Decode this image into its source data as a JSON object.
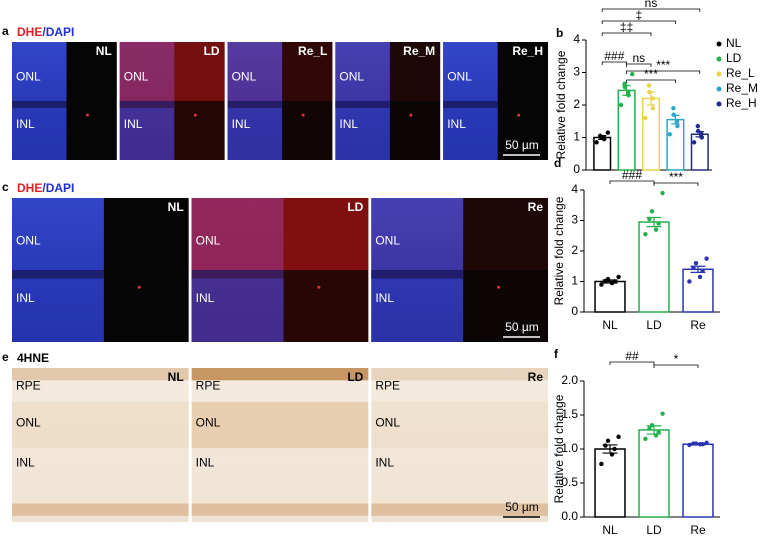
{
  "images": [
    {
      "letter": "a",
      "stain": [
        "DHE",
        "/",
        "DAPI"
      ],
      "panels": [
        {
          "label": "NL",
          "layers": [
            "ONL",
            "INL"
          ]
        },
        {
          "label": "LD",
          "layers": [
            "ONL",
            "INL"
          ]
        },
        {
          "label": "Re_L",
          "layers": [
            "ONL",
            "INL"
          ]
        },
        {
          "label": "Re_M",
          "layers": [
            "ONL",
            "INL"
          ]
        },
        {
          "label": "Re_H",
          "layers": [
            "ONL",
            "INL"
          ]
        }
      ],
      "scale_bar": "50 µm"
    },
    {
      "letter": "c",
      "stain": [
        "DHE",
        "/",
        "DAPI"
      ],
      "panels": [
        {
          "label": "NL",
          "layers": [
            "ONL",
            "INL"
          ]
        },
        {
          "label": "LD",
          "layers": [
            "ONL",
            "INL"
          ]
        },
        {
          "label": "Re",
          "layers": [
            "ONL",
            "INL"
          ]
        }
      ],
      "scale_bar": "50 µm"
    },
    {
      "letter": "e",
      "stain": [
        "4HNE"
      ],
      "panels": [
        {
          "label": "NL",
          "layers": [
            "RPE",
            "ONL",
            "INL"
          ]
        },
        {
          "label": "LD",
          "layers": [
            "RPE",
            "ONL",
            "INL"
          ]
        },
        {
          "label": "Re",
          "layers": [
            "RPE",
            "ONL",
            "INL"
          ]
        }
      ],
      "scale_bar": "50 µm"
    }
  ],
  "chart_data": [
    {
      "type": "bar",
      "letter": "b",
      "ylabel": "Relative fold change",
      "categories": [
        "NL",
        "LD",
        "Re_L",
        "Re_M",
        "Re_H"
      ],
      "values": [
        1.0,
        2.45,
        2.2,
        1.55,
        1.1
      ],
      "errors": [
        0.06,
        0.15,
        0.2,
        0.13,
        0.08
      ],
      "points": [
        [
          0.85,
          0.95,
          1.0,
          1.02,
          1.05,
          1.15
        ],
        [
          2.0,
          2.3,
          2.4,
          2.55,
          2.65,
          2.95
        ],
        [
          1.6,
          1.9,
          2.2,
          2.4,
          2.6
        ],
        [
          1.1,
          1.35,
          1.5,
          1.7,
          1.9
        ],
        [
          0.85,
          1.0,
          1.1,
          1.2,
          1.35
        ]
      ],
      "colors": [
        "#000000",
        "#22b14c",
        "#e8d44d",
        "#2aa6c8",
        "#1f2a8a"
      ],
      "ylim": [
        0,
        4
      ],
      "yticks": [
        0,
        1,
        2,
        3,
        4
      ],
      "legend": "right",
      "annotations": [
        {
          "text": "ns",
          "between": [
            "NL",
            "Re_H"
          ]
        },
        {
          "text": "‡",
          "between": [
            "NL",
            "Re_M"
          ]
        },
        {
          "text": "‡‡",
          "between": [
            "NL",
            "Re_L"
          ]
        },
        {
          "text": "###",
          "between": [
            "NL",
            "LD"
          ]
        },
        {
          "text": "ns",
          "between": [
            "LD",
            "Re_L"
          ]
        },
        {
          "text": "***",
          "between": [
            "LD",
            "Re_H"
          ]
        },
        {
          "text": "***",
          "between": [
            "LD",
            "Re_M"
          ]
        }
      ]
    },
    {
      "type": "bar",
      "letter": "d",
      "ylabel": "Relative fold change",
      "categories": [
        "NL",
        "LD",
        "Re"
      ],
      "values": [
        1.0,
        2.95,
        1.4
      ],
      "errors": [
        0.05,
        0.15,
        0.1
      ],
      "points": [
        [
          0.9,
          0.95,
          1.0,
          1.02,
          1.08,
          1.15
        ],
        [
          2.55,
          2.7,
          2.9,
          3.05,
          3.3,
          3.9
        ],
        [
          1.0,
          1.15,
          1.35,
          1.45,
          1.6,
          1.75
        ]
      ],
      "colors": [
        "#000000",
        "#22b14c",
        "#2a33b0"
      ],
      "ylim": [
        0,
        4
      ],
      "yticks": [
        0,
        1,
        2,
        3,
        4
      ],
      "annotations": [
        {
          "text": "###",
          "between": [
            "NL",
            "LD"
          ]
        },
        {
          "text": "***",
          "between": [
            "LD",
            "Re"
          ]
        }
      ]
    },
    {
      "type": "bar",
      "letter": "f",
      "ylabel": "Relative fold change",
      "categories": [
        "NL",
        "LD",
        "Re"
      ],
      "values": [
        1.0,
        1.28,
        1.07
      ],
      "errors": [
        0.06,
        0.06,
        0.01
      ],
      "points": [
        [
          0.78,
          0.92,
          1.0,
          1.05,
          1.12,
          1.18
        ],
        [
          1.15,
          1.2,
          1.25,
          1.3,
          1.35,
          1.52
        ],
        [
          1.06,
          1.07,
          1.07,
          1.08,
          1.08,
          1.09
        ]
      ],
      "colors": [
        "#000000",
        "#22b14c",
        "#2a33b0"
      ],
      "ylim": [
        0,
        2
      ],
      "yticks": [
        {
          "value": 0,
          "label": "0.0"
        },
        0.5,
        {
          "value": 1,
          "label": "1.0"
        },
        1.5,
        {
          "value": 2,
          "label": "2.0"
        }
      ],
      "annotations": [
        {
          "text": "##",
          "between": [
            "NL",
            "LD"
          ]
        },
        {
          "text": "*",
          "between": [
            "LD",
            "Re"
          ]
        }
      ]
    }
  ]
}
